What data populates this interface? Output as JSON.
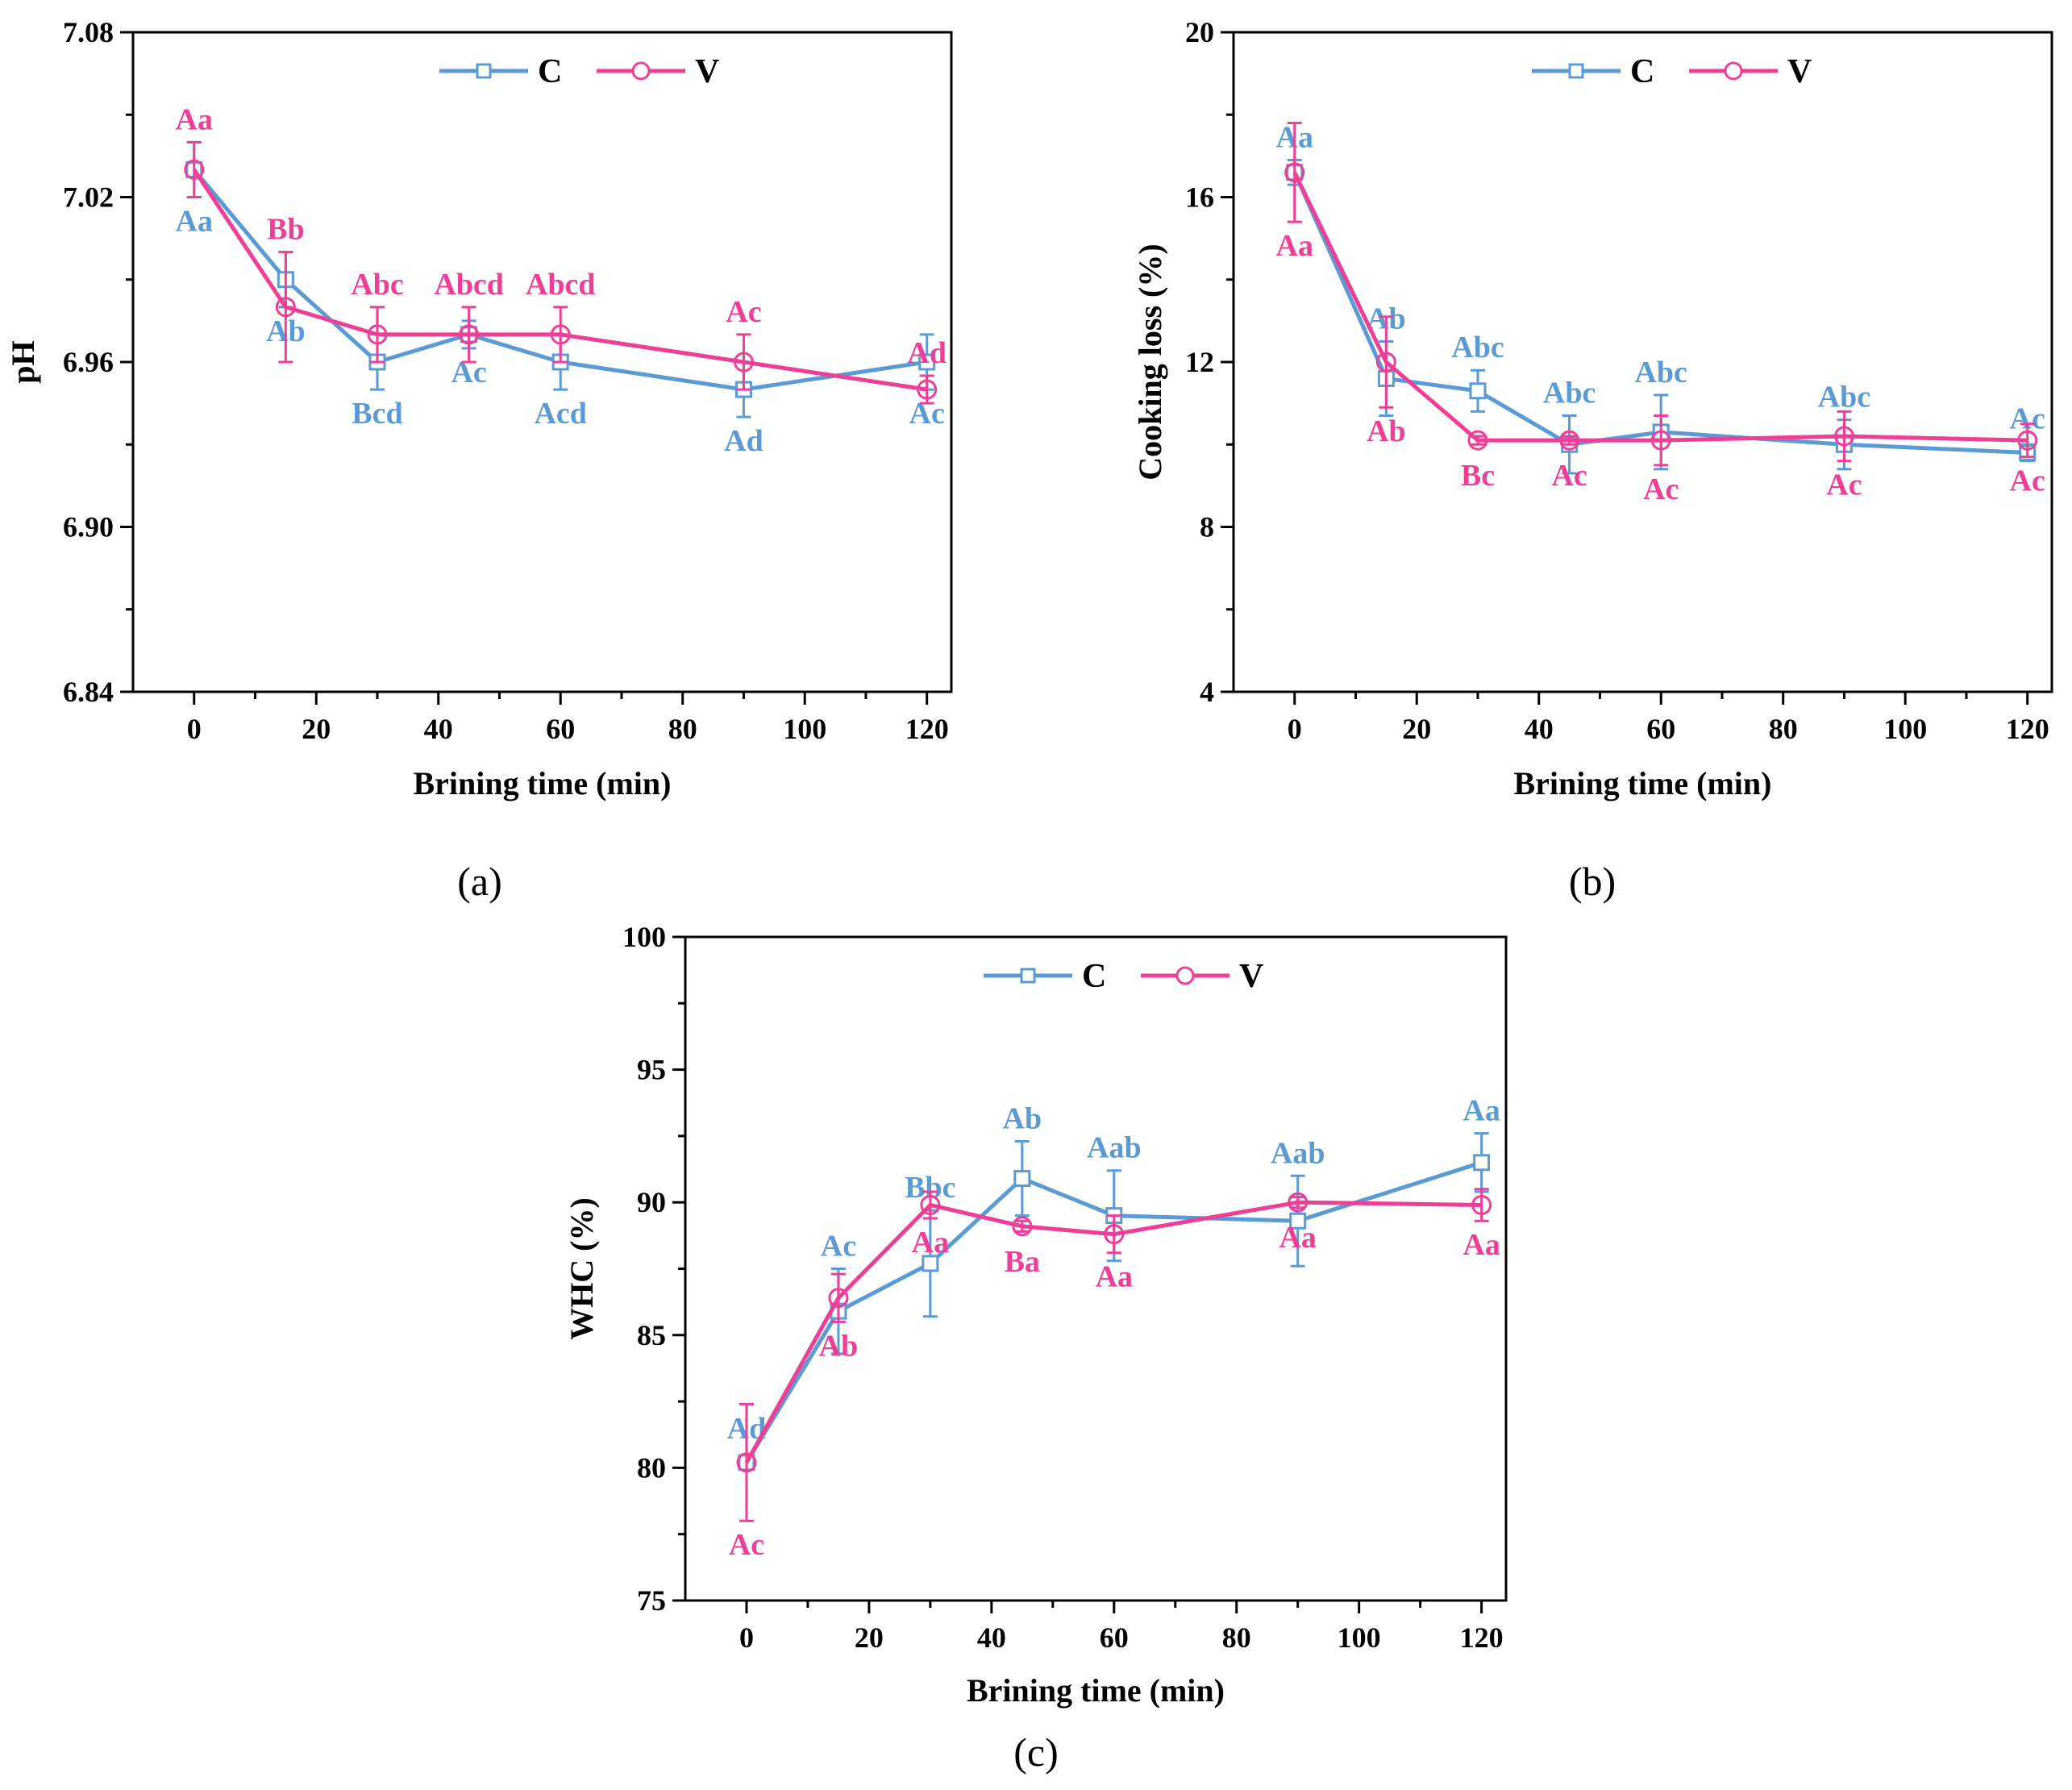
{
  "colors": {
    "C": "#5b9bd5",
    "V": "#ef3e96",
    "axis": "#000000"
  },
  "chart_data": [
    {
      "type": "line",
      "panel": "(a)",
      "xlabel": "Brining time (min)",
      "ylabel": "pH",
      "xlim": [
        -10,
        124
      ],
      "ylim": [
        6.84,
        7.08
      ],
      "xticks": [
        0,
        20,
        40,
        60,
        80,
        100,
        120
      ],
      "yticks": [
        6.84,
        6.9,
        6.96,
        7.02,
        7.08
      ],
      "ytick_labels": [
        "6.84",
        "6.90",
        "6.96",
        "7.02",
        "7.08"
      ],
      "x": [
        0,
        15,
        30,
        45,
        60,
        90,
        120
      ],
      "legend_position": "top-center",
      "series": [
        {
          "name": "C",
          "marker": "square",
          "values": [
            7.03,
            6.99,
            6.96,
            6.97,
            6.96,
            6.95,
            6.96
          ],
          "err": [
            0.01,
            0.01,
            0.01,
            0.005,
            0.01,
            0.01,
            0.01
          ],
          "labels": [
            "Aa",
            "Ab",
            "Bcd",
            "Ac",
            "Acd",
            "Ad",
            "Ac"
          ],
          "label_side": [
            "below",
            "below",
            "below",
            "below",
            "below",
            "below",
            "below"
          ]
        },
        {
          "name": "V",
          "marker": "circle",
          "values": [
            7.03,
            6.98,
            6.97,
            6.97,
            6.97,
            6.96,
            6.95
          ],
          "err": [
            0.01,
            0.02,
            0.01,
            0.01,
            0.01,
            0.01,
            0.005
          ],
          "labels": [
            "Aa",
            "Bb",
            "Abc",
            "Abcd",
            "Abcd",
            "Ac",
            "Ad"
          ],
          "label_side": [
            "above",
            "above",
            "above",
            "above",
            "above",
            "above",
            "above"
          ]
        }
      ]
    },
    {
      "type": "line",
      "panel": "(b)",
      "xlabel": "Brining time (min)",
      "ylabel": "Cooking loss (%)",
      "xlim": [
        -10,
        124
      ],
      "ylim": [
        4,
        20
      ],
      "xticks": [
        0,
        20,
        40,
        60,
        80,
        100,
        120
      ],
      "yticks": [
        4,
        8,
        12,
        16,
        20
      ],
      "ytick_labels": [
        "4",
        "8",
        "12",
        "16",
        "20"
      ],
      "x": [
        0,
        15,
        30,
        45,
        60,
        90,
        120
      ],
      "legend_position": "top-center",
      "series": [
        {
          "name": "C",
          "marker": "square",
          "values": [
            16.6,
            11.6,
            11.3,
            10.0,
            10.3,
            10.0,
            9.8
          ],
          "err": [
            0.3,
            0.9,
            0.5,
            0.7,
            0.9,
            0.6,
            0.2
          ],
          "labels": [
            "Aa",
            "Ab",
            "Abc",
            "Abc",
            "Abc",
            "Abc",
            "Ac"
          ],
          "label_side": [
            "above",
            "above",
            "above",
            "above",
            "above",
            "above",
            "above"
          ]
        },
        {
          "name": "V",
          "marker": "circle",
          "values": [
            16.6,
            12.0,
            10.1,
            10.1,
            10.1,
            10.2,
            10.1
          ],
          "err": [
            1.2,
            1.1,
            0.1,
            0.1,
            0.6,
            0.6,
            0.4
          ],
          "labels": [
            "Aa",
            "Ab",
            "Bc",
            "Ac",
            "Ac",
            "Ac",
            "Ac"
          ],
          "label_side": [
            "below",
            "below",
            "below",
            "below",
            "below",
            "below",
            "below"
          ]
        }
      ]
    },
    {
      "type": "line",
      "panel": "(c)",
      "xlabel": "Brining time (min)",
      "ylabel": "WHC (%)",
      "xlim": [
        -10,
        124
      ],
      "ylim": [
        75,
        100
      ],
      "xticks": [
        0,
        20,
        40,
        60,
        80,
        100,
        120
      ],
      "yticks": [
        75,
        80,
        85,
        90,
        95,
        100
      ],
      "ytick_labels": [
        "75",
        "80",
        "85",
        "90",
        "95",
        "100"
      ],
      "x": [
        0,
        15,
        30,
        45,
        60,
        90,
        120
      ],
      "legend_position": "top-center",
      "series": [
        {
          "name": "C",
          "marker": "square",
          "values": [
            80.2,
            85.9,
            87.7,
            90.9,
            89.5,
            89.3,
            91.5
          ],
          "err": [
            0.2,
            1.6,
            2.0,
            1.4,
            1.7,
            1.7,
            1.1
          ],
          "labels": [
            "Ad",
            "Ac",
            "Bbc",
            "Ab",
            "Aab",
            "Aab",
            "Aa"
          ],
          "label_side": [
            "above",
            "above",
            "above",
            "above",
            "above",
            "above",
            "above"
          ]
        },
        {
          "name": "V",
          "marker": "circle",
          "values": [
            80.2,
            86.4,
            89.9,
            89.1,
            88.8,
            90.0,
            89.9
          ],
          "err": [
            2.2,
            0.9,
            0.5,
            0.2,
            0.7,
            0.2,
            0.6
          ],
          "labels": [
            "Ac",
            "Ab",
            "Aa",
            "Ba",
            "Aa",
            "Aa",
            "Aa"
          ],
          "label_side": [
            "below",
            "below",
            "below",
            "below",
            "below",
            "below",
            "below"
          ]
        }
      ]
    }
  ]
}
